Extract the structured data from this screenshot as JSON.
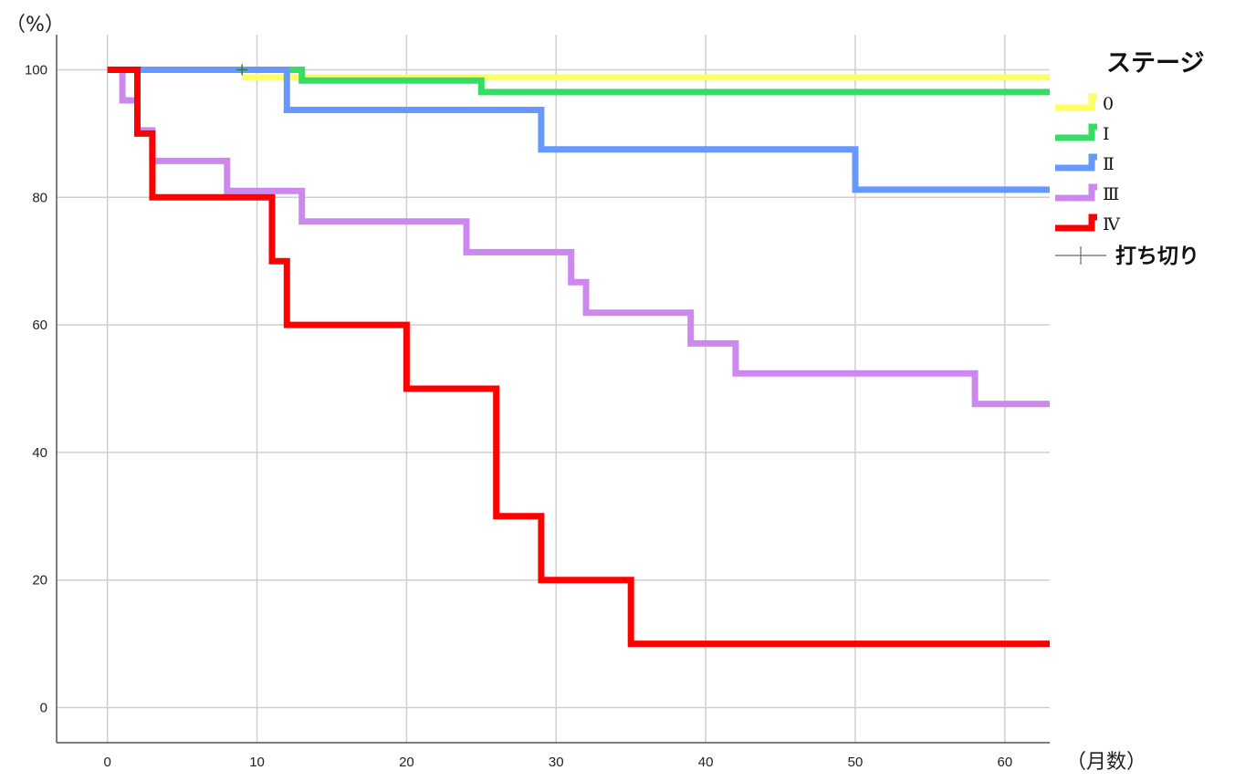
{
  "chart_data": {
    "type": "line",
    "step": true,
    "y_unit": "（%）",
    "x_unit": "（月数）",
    "xlim": [
      -3.4,
      63
    ],
    "ylim": [
      -5.5,
      105.5
    ],
    "x_ticks": [
      0,
      10,
      20,
      30,
      40,
      50,
      60
    ],
    "y_ticks": [
      0,
      20,
      40,
      60,
      80,
      100
    ],
    "grid": true,
    "legend": {
      "title": "ステージ",
      "position": "right",
      "censor_label": "打ち切り"
    },
    "series": [
      {
        "name": "0",
        "color": "#ffff66",
        "points": [
          [
            9,
            98.8
          ],
          [
            63,
            98.8
          ]
        ]
      },
      {
        "name": "Ⅰ",
        "color": "#33dd66",
        "points": [
          [
            0,
            100
          ],
          [
            13,
            100
          ],
          [
            13,
            98.3
          ],
          [
            25,
            98.3
          ],
          [
            25,
            96.5
          ],
          [
            63,
            96.5
          ]
        ]
      },
      {
        "name": "Ⅱ",
        "color": "#6699ff",
        "points": [
          [
            0,
            100
          ],
          [
            12,
            100
          ],
          [
            12,
            93.7
          ],
          [
            29,
            93.7
          ],
          [
            29,
            87.5
          ],
          [
            50,
            87.5
          ],
          [
            50,
            81.2
          ],
          [
            63,
            81.2
          ]
        ]
      },
      {
        "name": "Ⅲ",
        "color": "#cc88ee",
        "points": [
          [
            0,
            100
          ],
          [
            1,
            100
          ],
          [
            1,
            95.2
          ],
          [
            2,
            95.2
          ],
          [
            2,
            90.5
          ],
          [
            3,
            90.5
          ],
          [
            3,
            85.7
          ],
          [
            8,
            85.7
          ],
          [
            8,
            81
          ],
          [
            13,
            81
          ],
          [
            13,
            76.2
          ],
          [
            24,
            76.2
          ],
          [
            24,
            71.4
          ],
          [
            31,
            71.4
          ],
          [
            31,
            66.7
          ],
          [
            32,
            66.7
          ],
          [
            32,
            61.9
          ],
          [
            39,
            61.9
          ],
          [
            39,
            57.1
          ],
          [
            42,
            57.1
          ],
          [
            42,
            52.4
          ],
          [
            58,
            52.4
          ],
          [
            58,
            47.6
          ],
          [
            63,
            47.6
          ]
        ]
      },
      {
        "name": "Ⅳ",
        "color": "#ff0000",
        "points": [
          [
            0,
            100
          ],
          [
            2,
            100
          ],
          [
            2,
            90
          ],
          [
            3,
            90
          ],
          [
            3,
            80
          ],
          [
            11,
            80
          ],
          [
            11,
            70
          ],
          [
            12,
            70
          ],
          [
            12,
            60
          ],
          [
            20,
            60
          ],
          [
            20,
            50
          ],
          [
            26,
            50
          ],
          [
            26,
            30
          ],
          [
            29,
            30
          ],
          [
            29,
            20
          ],
          [
            35,
            20
          ],
          [
            35,
            10
          ],
          [
            63,
            10
          ]
        ]
      }
    ],
    "censored": [
      {
        "series": "0",
        "x": 9,
        "y": 100,
        "color": "#2e7d32"
      }
    ]
  }
}
